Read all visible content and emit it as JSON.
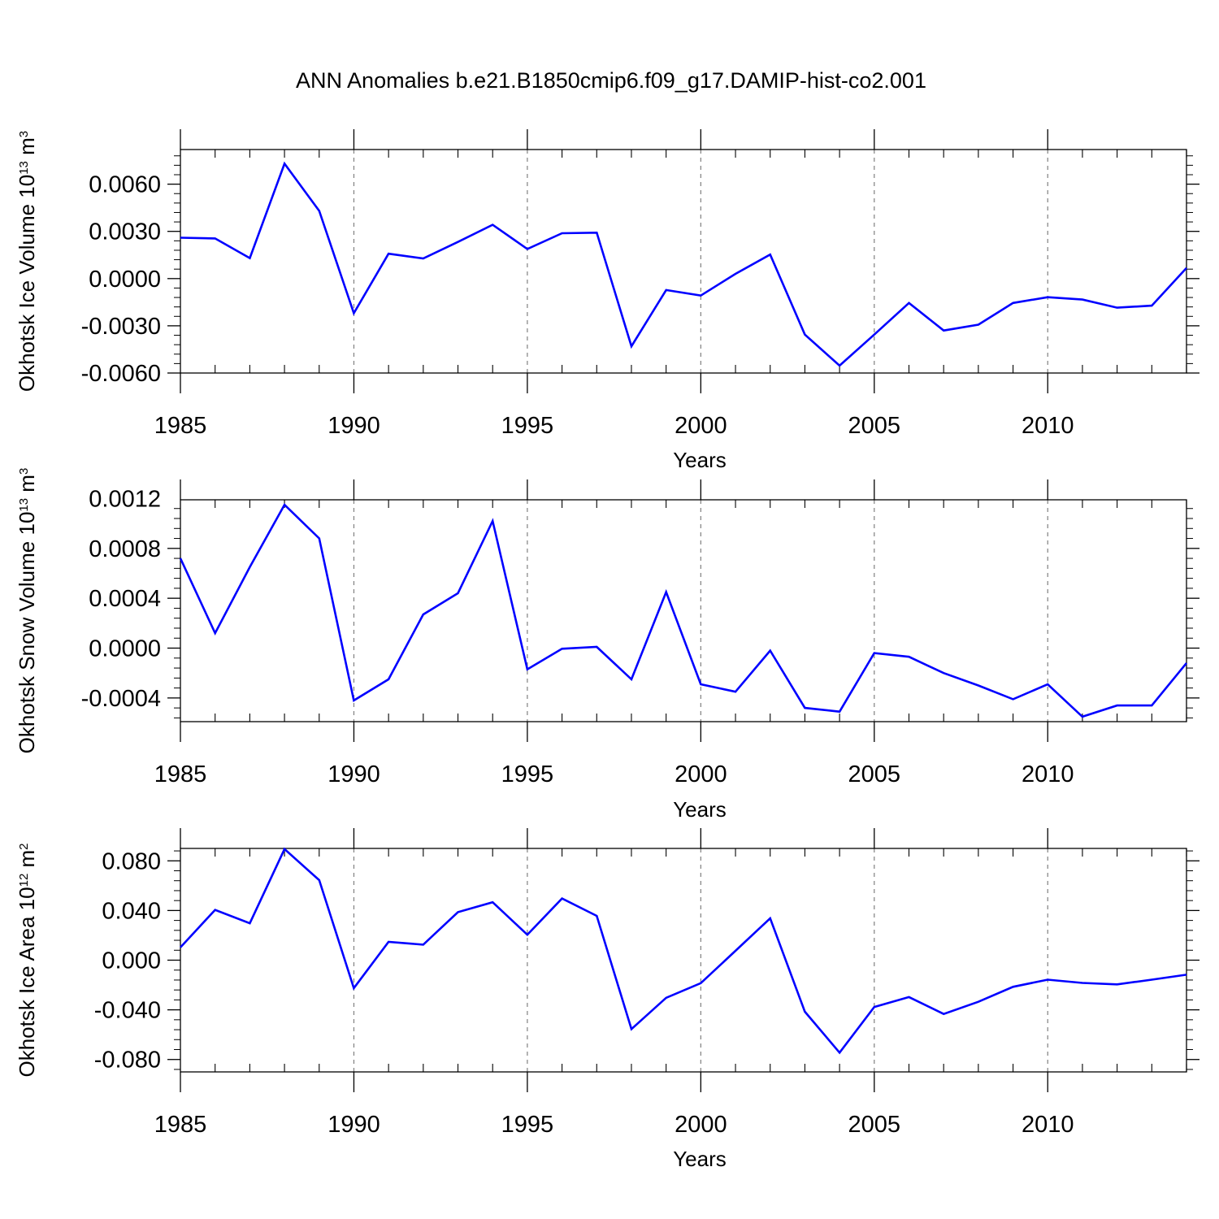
{
  "title": "ANN Anomalies b.e21.B1850cmip6.f09_g17.DAMIP-hist-co2.001",
  "colors": {
    "line": "#0000ff",
    "axis": "#000000",
    "grid": "#808080"
  },
  "chart_data": [
    {
      "type": "line",
      "xlabel": "Years",
      "ylabel": {
        "text": "Okhotsk Ice Volume 10",
        "exp": "13",
        "unit": " m",
        "unit_exp": "3"
      },
      "xlim": [
        1985,
        2014
      ],
      "ylim": [
        -0.006,
        0.0082
      ],
      "x_ticks": [
        1985,
        1990,
        1995,
        2000,
        2005,
        2010
      ],
      "x_tick_labels": [
        "1985",
        "1990",
        "1995",
        "2000",
        "2005",
        "2010"
      ],
      "y_ticks": [
        -0.006,
        -0.003,
        0.0,
        0.003,
        0.006
      ],
      "y_tick_labels": [
        "-0.0060",
        "-0.0030",
        "0.0000",
        "0.0030",
        "0.0060"
      ],
      "grid": "vertical dashed at labeled years",
      "x": [
        1985,
        1986,
        1987,
        1988,
        1989,
        1990,
        1991,
        1992,
        1993,
        1994,
        1995,
        1996,
        1997,
        1998,
        1999,
        2000,
        2001,
        2002,
        2003,
        2004,
        2005,
        2006,
        2007,
        2008,
        2009,
        2010,
        2011,
        2012,
        2013,
        2014
      ],
      "series": [
        {
          "values": [
            0.0026,
            0.00255,
            0.0013,
            0.0073,
            0.0043,
            -0.0022,
            0.00158,
            0.00128,
            0.00233,
            0.00342,
            0.00188,
            0.00288,
            0.00292,
            -0.0043,
            -0.00073,
            -0.00108,
            0.0003,
            0.00153,
            -0.00356,
            -0.00553,
            -0.00356,
            -0.00155,
            -0.0033,
            -0.00293,
            -0.00155,
            -0.00118,
            -0.00133,
            -0.00185,
            -0.00172,
            0.00067
          ]
        }
      ]
    },
    {
      "type": "line",
      "xlabel": "Years",
      "ylabel": {
        "text": "Okhotsk Snow Volume 10",
        "exp": "13",
        "unit": " m",
        "unit_exp": "3"
      },
      "xlim": [
        1985,
        2014
      ],
      "ylim": [
        -0.00059,
        0.00119
      ],
      "x_ticks": [
        1985,
        1990,
        1995,
        2000,
        2005,
        2010
      ],
      "x_tick_labels": [
        "1985",
        "1990",
        "1995",
        "2000",
        "2005",
        "2010"
      ],
      "y_ticks": [
        -0.0004,
        0.0,
        0.0004,
        0.0008,
        0.0012
      ],
      "y_tick_labels": [
        "-0.0004",
        "0.0000",
        "0.0004",
        "0.0008",
        "0.0012"
      ],
      "grid": "vertical dashed at labeled years",
      "x": [
        1985,
        1986,
        1987,
        1988,
        1989,
        1990,
        1991,
        1992,
        1993,
        1994,
        1995,
        1996,
        1997,
        1998,
        1999,
        2000,
        2001,
        2002,
        2003,
        2004,
        2005,
        2006,
        2007,
        2008,
        2009,
        2010,
        2011,
        2012,
        2013,
        2014
      ],
      "series": [
        {
          "values": [
            0.00072,
            0.00012,
            0.00065,
            0.00115,
            0.00088,
            -0.00042,
            -0.00025,
            0.00027,
            0.00044,
            0.00102,
            -0.00017,
            -5e-06,
            1e-05,
            -0.00025,
            0.00045,
            -0.00029,
            -0.00035,
            -2e-05,
            -0.00048,
            -0.00051,
            -4e-05,
            -7e-05,
            -0.0002,
            -0.0003,
            -0.00041,
            -0.00029,
            -0.00055,
            -0.00046,
            -0.00046,
            -0.00012
          ]
        }
      ]
    },
    {
      "type": "line",
      "xlabel": "Years",
      "ylabel": {
        "text": "Okhotsk Ice Area 10",
        "exp": "12",
        "unit": " m",
        "unit_exp": "2"
      },
      "xlim": [
        1985,
        2014
      ],
      "ylim": [
        -0.09,
        0.09
      ],
      "x_ticks": [
        1985,
        1990,
        1995,
        2000,
        2005,
        2010
      ],
      "x_tick_labels": [
        "1985",
        "1990",
        "1995",
        "2000",
        "2005",
        "2010"
      ],
      "y_ticks": [
        -0.08,
        -0.04,
        0.0,
        0.04,
        0.08
      ],
      "y_tick_labels": [
        "-0.080",
        "-0.040",
        "0.000",
        "0.040",
        "0.080"
      ],
      "grid": "vertical dashed at labeled years",
      "x": [
        1985,
        1986,
        1987,
        1988,
        1989,
        1990,
        1991,
        1992,
        1993,
        1994,
        1995,
        1996,
        1997,
        1998,
        1999,
        2000,
        2001,
        2002,
        2003,
        2004,
        2005,
        2006,
        2007,
        2008,
        2009,
        2010,
        2011,
        2012,
        2013,
        2014
      ],
      "series": [
        {
          "values": [
            0.0103,
            0.0405,
            0.0297,
            0.0895,
            0.0645,
            -0.0225,
            0.0147,
            0.0125,
            0.0387,
            0.0467,
            0.0205,
            0.0497,
            0.0357,
            -0.0555,
            -0.0303,
            -0.0185,
            0.0075,
            0.0337,
            -0.0415,
            -0.0745,
            -0.0377,
            -0.0297,
            -0.0433,
            -0.0335,
            -0.0215,
            -0.0157,
            -0.0183,
            -0.0195,
            -0.0157,
            -0.0117
          ]
        }
      ]
    }
  ]
}
